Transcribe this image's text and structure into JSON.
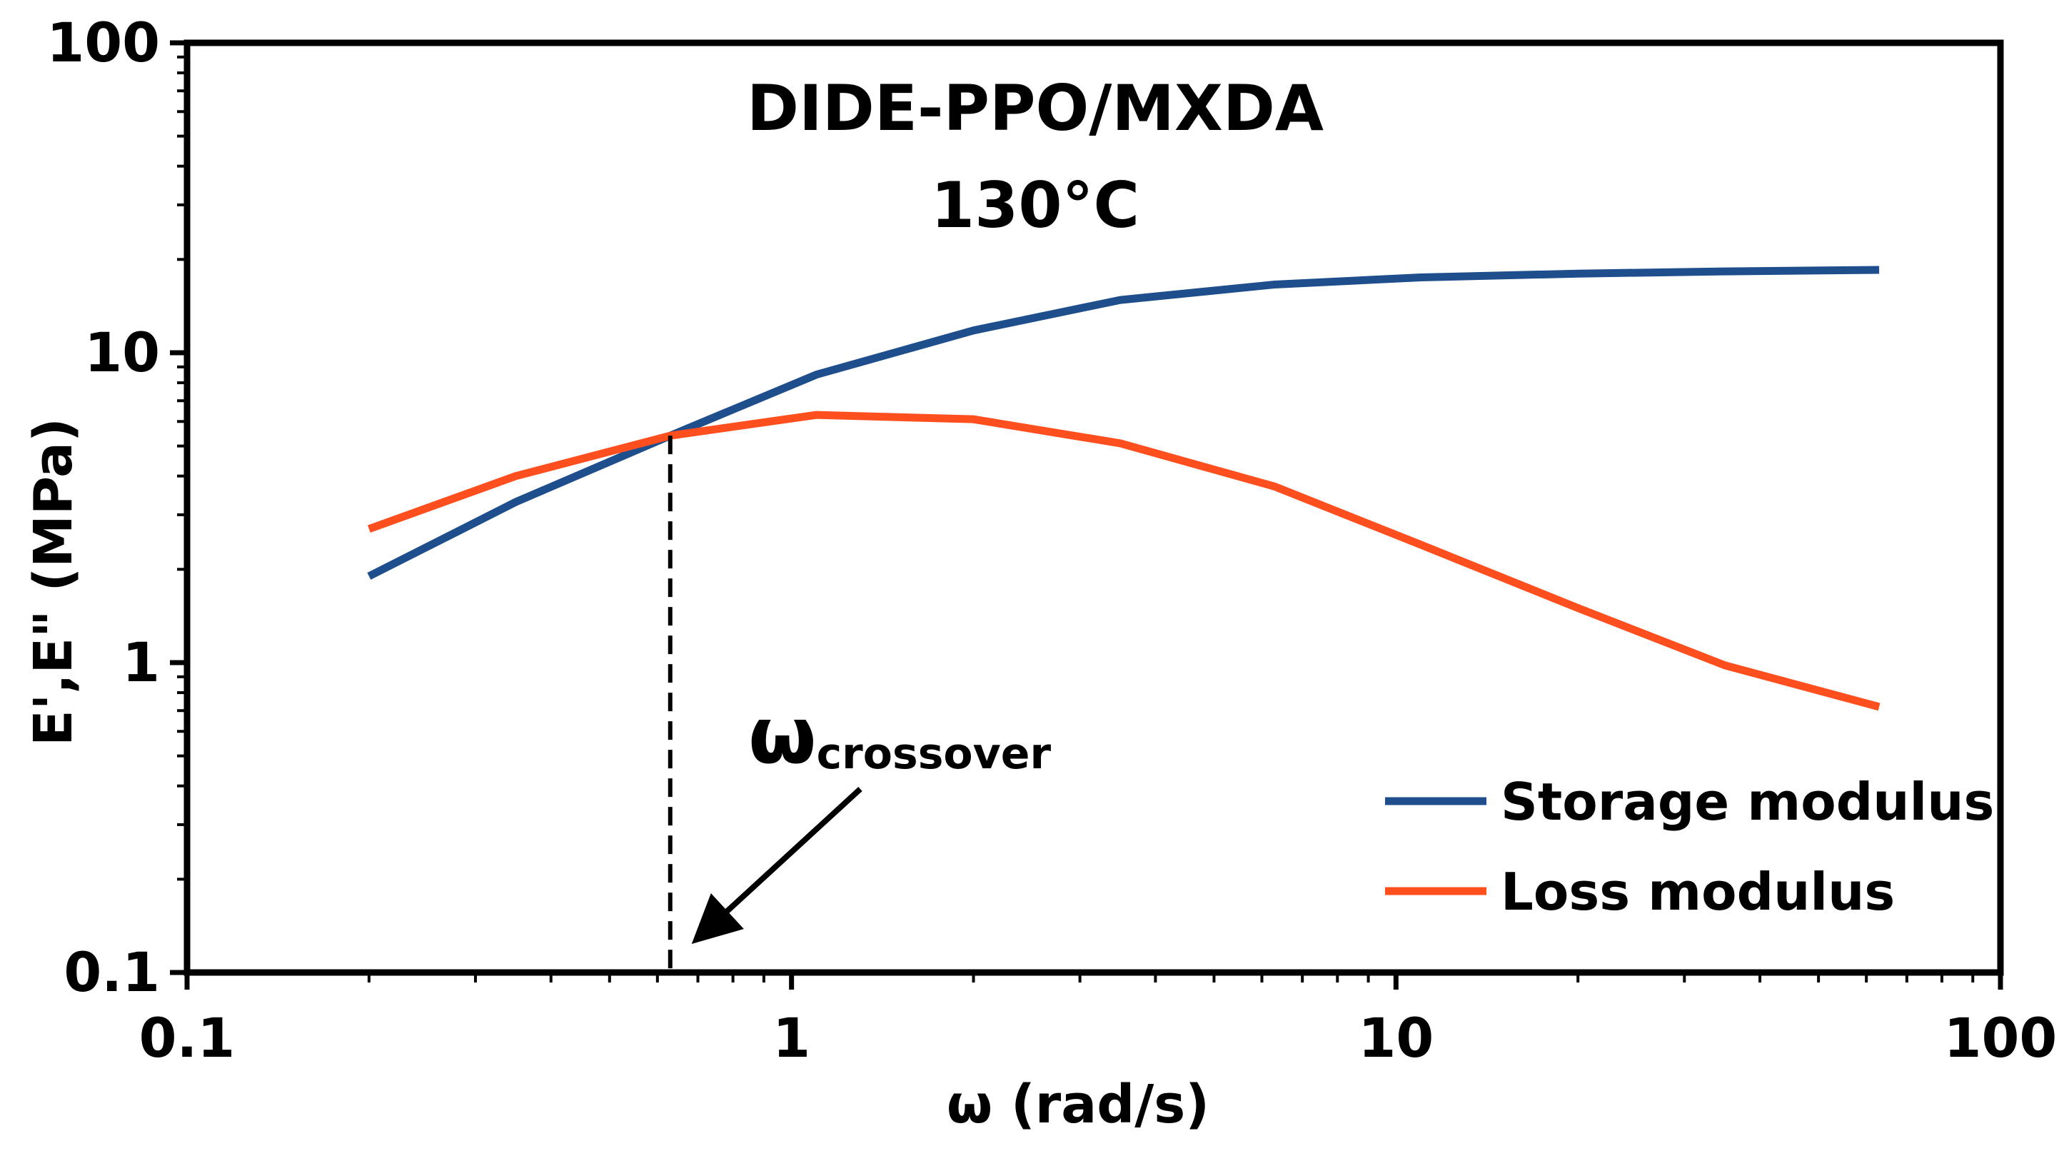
{
  "chart_data": {
    "type": "line",
    "title": "DIDE-PPO/MXDA",
    "subtitle": "130°C",
    "xlabel": "ω (rad/s)",
    "ylabel": "E',E\" (MPa)",
    "xscale": "log",
    "yscale": "log",
    "xlim": [
      0.1,
      100
    ],
    "ylim": [
      0.1,
      100
    ],
    "x_ticks": [
      0.1,
      1,
      10,
      100
    ],
    "x_tick_labels": [
      "0.1",
      "1",
      "10",
      "100"
    ],
    "y_ticks": [
      0.1,
      1,
      10,
      100
    ],
    "y_tick_labels": [
      "0.1",
      "1",
      "10",
      "100"
    ],
    "grid": false,
    "legend_position": "bottom-right",
    "series": [
      {
        "name": "Storage modulus",
        "color": "#1f4e8c",
        "x": [
          0.2,
          0.35,
          0.63,
          1.1,
          2.0,
          3.5,
          6.3,
          11,
          20,
          35,
          63
        ],
        "y": [
          1.9,
          3.3,
          5.4,
          8.5,
          11.8,
          14.8,
          16.6,
          17.5,
          18.0,
          18.3,
          18.5
        ]
      },
      {
        "name": "Loss modulus",
        "color": "#ff4f1f",
        "x": [
          0.2,
          0.35,
          0.63,
          1.1,
          2.0,
          3.5,
          6.3,
          11,
          20,
          35,
          63
        ],
        "y": [
          2.7,
          4.0,
          5.4,
          6.3,
          6.1,
          5.1,
          3.7,
          2.4,
          1.5,
          0.98,
          0.72
        ]
      }
    ],
    "annotations": [
      {
        "label_main": "ω",
        "label_sub": "crossover",
        "x": 0.63,
        "note": "dashed vertical line marking crossover frequency"
      }
    ]
  }
}
